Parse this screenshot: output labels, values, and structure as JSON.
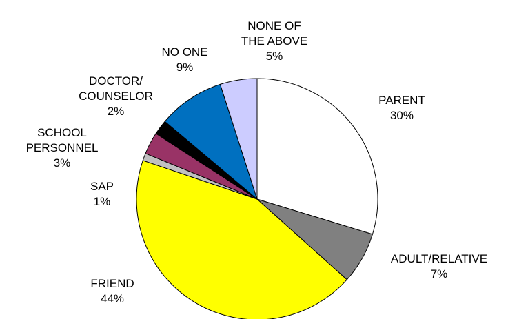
{
  "chart_data": {
    "type": "pie",
    "categories": [
      "PARENT",
      "ADULT/RELATIVE",
      "FRIEND",
      "SAP",
      "SCHOOL\nPERSONNEL",
      "DOCTOR/\nCOUNSELOR",
      "NO ONE",
      "NONE OF\nTHE ABOVE"
    ],
    "values": [
      30,
      7,
      44,
      1,
      3,
      2,
      9,
      5
    ],
    "value_labels": [
      "30%",
      "7%",
      "44%",
      "1%",
      "3%",
      "2%",
      "9%",
      "5%"
    ],
    "colors": [
      "#ffffff",
      "#808080",
      "#ffff00",
      "#c0c0c0",
      "#993366",
      "#000000",
      "#0070c0",
      "#ccccff"
    ]
  }
}
